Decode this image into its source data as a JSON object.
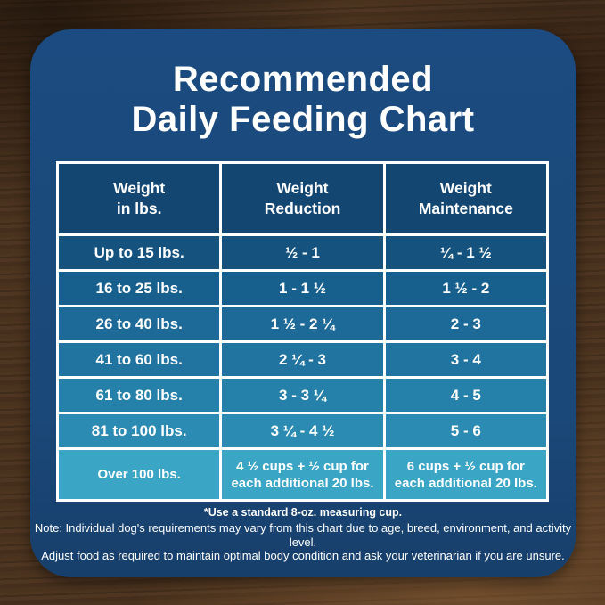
{
  "title": "Recommended\nDaily Feeding Chart",
  "table": {
    "headers": [
      "Weight\nin lbs.",
      "Weight\nReduction",
      "Weight\nMaintenance"
    ],
    "rows": [
      {
        "weight": "Up to 15 lbs.",
        "reduction": "½ - 1",
        "maintenance": "¼ - 1 ½"
      },
      {
        "weight": "16 to 25 lbs.",
        "reduction": "1 - 1 ½",
        "maintenance": "1 ½ - 2"
      },
      {
        "weight": "26 to 40 lbs.",
        "reduction": "1 ½ - 2 ¼",
        "maintenance": "2 - 3"
      },
      {
        "weight": "41 to 60 lbs.",
        "reduction": "2 ¼ - 3",
        "maintenance": "3 - 4"
      },
      {
        "weight": "61 to 80 lbs.",
        "reduction": "3 - 3 ¼",
        "maintenance": "4 - 5"
      },
      {
        "weight": "81 to 100 lbs.",
        "reduction": "3 ¼ - 4 ½",
        "maintenance": "5 - 6"
      },
      {
        "weight": "Over 100 lbs.",
        "reduction": "4 ½ cups + ½ cup for\neach additional 20 lbs.",
        "maintenance": "6 cups + ½ cup for\neach additional 20 lbs."
      }
    ]
  },
  "footnotes": {
    "measuring_cup": "*Use a standard 8-oz. measuring cup.",
    "note_line1": "Note: Individual dog's requirements may vary from this chart due to age, breed, environment, and activity level.",
    "note_line2": "Adjust food as required to maintain optimal body condition and ask your veterinarian if you are unsure."
  },
  "colors": {
    "card_background": "#1b4b80",
    "header_cell_background": "#144672",
    "grid_border": "#ffffff",
    "text": "#ffffff",
    "row_backgrounds": [
      "#15537e",
      "#17608d",
      "#1d6a98",
      "#2173a0",
      "#2581a9",
      "#2b8bb2",
      "#3aa5c5"
    ],
    "wood_background": "#46301d"
  },
  "chart_data": {
    "type": "table",
    "title": "Recommended Daily Feeding Chart",
    "columns": [
      "Weight in lbs.",
      "Weight Reduction",
      "Weight Maintenance"
    ],
    "rows": [
      [
        "Up to 15 lbs.",
        "½ - 1",
        "¼ - 1 ½"
      ],
      [
        "16 to 25 lbs.",
        "1 - 1 ½",
        "1 ½ - 2"
      ],
      [
        "26 to 40 lbs.",
        "1 ½ - 2 ¼",
        "2 - 3"
      ],
      [
        "41 to 60 lbs.",
        "2 ¼ - 3",
        "3 - 4"
      ],
      [
        "61 to 80 lbs.",
        "3 - 3 ¼",
        "4 - 5"
      ],
      [
        "81 to 100 lbs.",
        "3 ¼ - 4 ½",
        "5 - 6"
      ],
      [
        "Over 100 lbs.",
        "4 ½ cups + ½ cup for each additional 20 lbs.",
        "6 cups + ½ cup for each additional 20 lbs."
      ]
    ],
    "notes": [
      "*Use a standard 8-oz. measuring cup."
    ]
  }
}
